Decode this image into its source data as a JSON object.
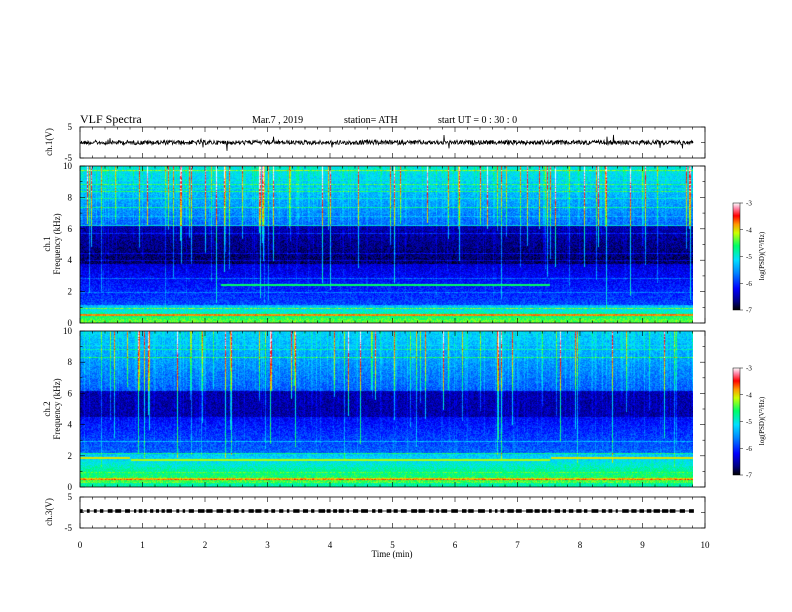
{
  "header": {
    "title": "VLF  Spectra",
    "date": "Mar.7  , 2019",
    "station": "station= ATH",
    "start": "start  UT  =    0  : 30 : 0"
  },
  "chart_data": [
    {
      "type": "line",
      "name": "ch1-waveform",
      "ylabel": "ch.1(V)",
      "ylim": [
        -5,
        5
      ],
      "yticks": [
        "5",
        "-5"
      ],
      "xlim": [
        0,
        10
      ]
    },
    {
      "type": "heatmap",
      "name": "ch1-spectrogram",
      "ylabel": "ch.1\nFrequency  (kHz)",
      "ylim": [
        0,
        10
      ],
      "yticks": [
        "0",
        "2",
        "4",
        "6",
        "8",
        "10"
      ],
      "xlim": [
        0,
        10
      ],
      "colorbar": {
        "label": "log(PSD)(V²/Hz)",
        "range": [
          -7,
          -3
        ],
        "ticks": [
          "-3",
          "-4",
          "-5",
          "-6",
          "-7"
        ]
      }
    },
    {
      "type": "heatmap",
      "name": "ch2-spectrogram",
      "ylabel": "ch.2\nFrequency  (kHz)",
      "ylim": [
        0,
        10
      ],
      "yticks": [
        "0",
        "2",
        "4",
        "6",
        "8",
        "10"
      ],
      "xlim": [
        0,
        10
      ],
      "colorbar": {
        "label": "log(PSD)(V²/Hz)",
        "range": [
          -7,
          -3
        ],
        "ticks": [
          "-3",
          "-4",
          "-5",
          "-6",
          "-7"
        ]
      }
    },
    {
      "type": "line",
      "name": "ch3-waveform",
      "ylabel": "ch.3(V)",
      "ylim": [
        -5,
        5
      ],
      "yticks": [
        "5",
        "-5"
      ],
      "xlim": [
        0,
        10
      ],
      "xlabel": "Time  (min)",
      "xticks": [
        "0",
        "1",
        "2",
        "3",
        "4",
        "5",
        "6",
        "7",
        "8",
        "9",
        "10"
      ]
    }
  ]
}
